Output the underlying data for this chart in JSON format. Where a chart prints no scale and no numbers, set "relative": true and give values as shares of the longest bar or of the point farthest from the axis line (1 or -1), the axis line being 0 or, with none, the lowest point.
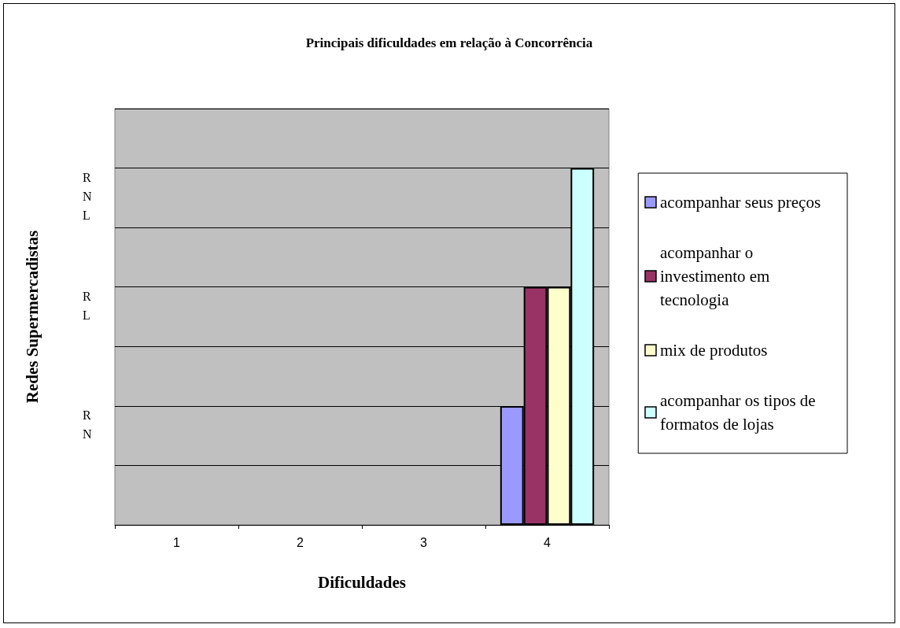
{
  "chart_data": {
    "type": "bar",
    "title": "Principais dificuldades em relação à Concorrência",
    "xlabel": "Dificuldades",
    "ylabel": "Redes Supermercadistas",
    "categories": [
      "1",
      "2",
      "3",
      "4"
    ],
    "series": [
      {
        "name": "acompanhar seus preços",
        "color": "#9999ff",
        "values": [
          null,
          null,
          null,
          0.333
        ]
      },
      {
        "name": "acompanhar o investimento em tecnologia",
        "color": "#993366",
        "values": [
          null,
          null,
          null,
          0.667
        ]
      },
      {
        "name": "mix de produtos",
        "color": "#ffffcc",
        "values": [
          null,
          null,
          null,
          0.667
        ]
      },
      {
        "name": "acompanhar os tipos de formatos de lojas",
        "color": "#ccffff",
        "values": [
          null,
          null,
          null,
          1
        ]
      }
    ],
    "relative": true,
    "annotations": [
      "RN",
      "RL",
      "RNL"
    ],
    "grid": "y",
    "legend": "right"
  }
}
